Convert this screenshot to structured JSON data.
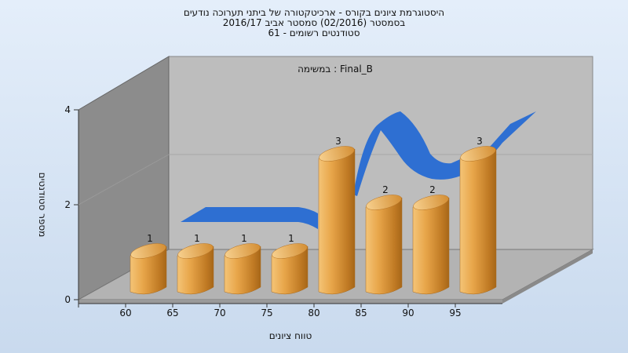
{
  "chart_data": {
    "type": "bar",
    "title_lines": [
      "היסטוגרמת ציונים בקורס - ארכיטקטורה של ביתני תערוכה נודעים",
      "בסמסטר  (02/2016)  סמסטר אביב 2016/17",
      "סטודנטים רשומים - 61"
    ],
    "legend_text": "במשימה : Final_B",
    "xlabel": "טווח ציונים",
    "ylabel": "מספר סטודנטים",
    "categories": [
      "60",
      "65",
      "70",
      "75",
      "80",
      "85",
      "90",
      "95"
    ],
    "values": [
      1,
      1,
      1,
      1,
      3,
      2,
      2,
      3
    ],
    "y_ticks": [
      "0",
      "2",
      "4"
    ],
    "ylim": [
      0,
      4
    ],
    "bar_color": "#e8a64a",
    "curve_color": "#2e6fd2",
    "wall_color": "#b9b9b9",
    "side_wall_color": "#8a8a8a"
  }
}
